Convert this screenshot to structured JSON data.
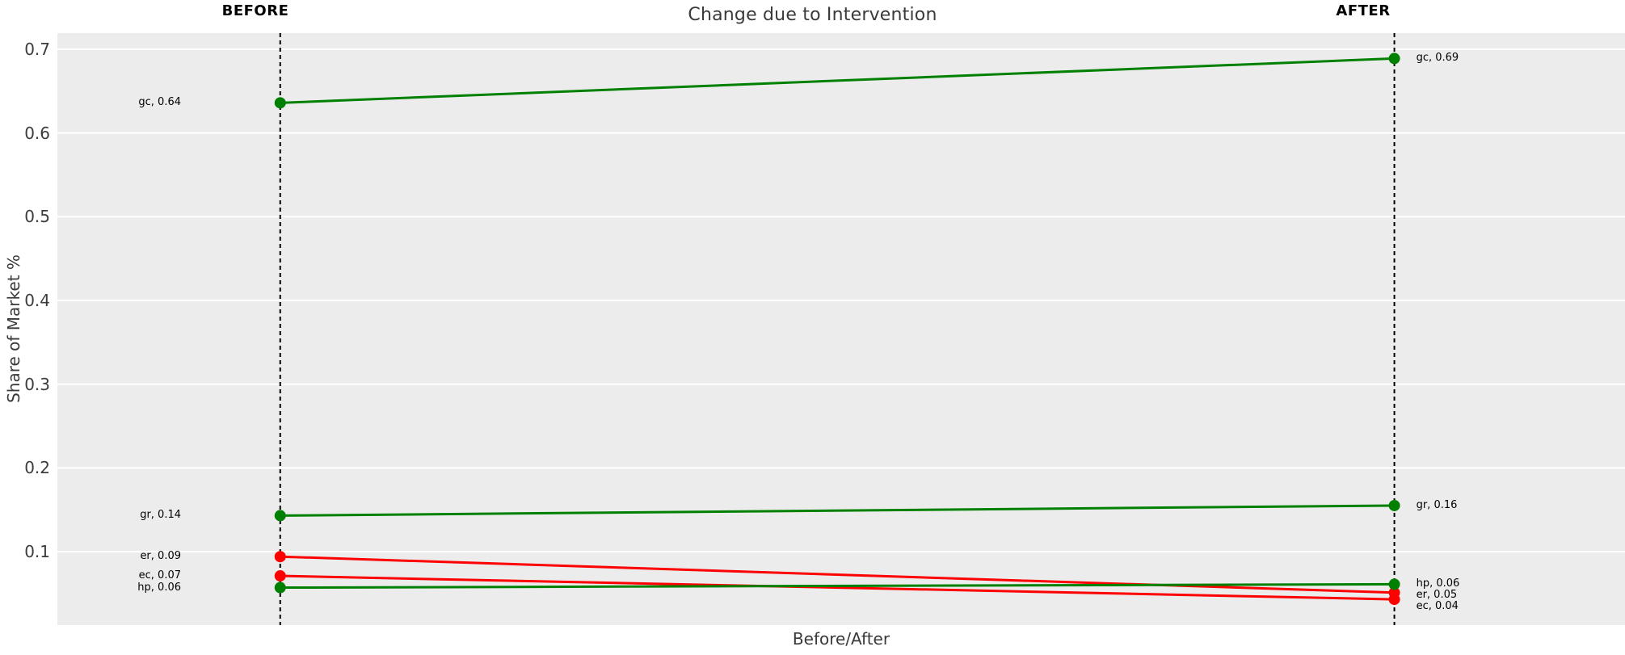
{
  "title": "Change due to Intervention",
  "axis": {
    "x_label": "Before/After",
    "y_label": "Share of Market %"
  },
  "column_headers": {
    "before": "BEFORE",
    "after": "AFTER"
  },
  "colors": {
    "increase_green": "#008000",
    "decrease_red": "#ff0000",
    "plot_background": "#ececec",
    "gridline": "#ffffff",
    "dashed_guide": "#000000",
    "text_dark": "#3d3d3d"
  },
  "chart_data": {
    "type": "line",
    "subtype": "slopegraph",
    "title": "Change due to Intervention",
    "xlabel": "Before/After",
    "ylabel": "Share of Market %",
    "categories": [
      "BEFORE",
      "AFTER"
    ],
    "category_x": [
      1,
      2
    ],
    "xlim": [
      0.8,
      2.207
    ],
    "ylim": [
      0.0122,
      0.7193
    ],
    "yticks": [
      0.1,
      0.2,
      0.3,
      0.4,
      0.5,
      0.6,
      0.7
    ],
    "ytick_labels": [
      "0.1",
      "0.2",
      "0.3",
      "0.4",
      "0.5",
      "0.6",
      "0.7"
    ],
    "grid": "horizontal white gridlines on grey background",
    "legend_position": "none",
    "guide_lines": "vertical black dashed line at each category",
    "series": [
      {
        "name": "gc",
        "values": [
          0.64,
          0.69
        ],
        "values_precise": [
          0.636,
          0.689
        ],
        "color": "#008000",
        "label_before": "gc, 0.64",
        "label_after": "gc, 0.69"
      },
      {
        "name": "gr",
        "values": [
          0.14,
          0.16
        ],
        "values_precise": [
          0.143,
          0.155
        ],
        "color": "#008000",
        "label_before": "gr, 0.14",
        "label_after": "gr, 0.16"
      },
      {
        "name": "er",
        "values": [
          0.09,
          0.05
        ],
        "values_precise": [
          0.094,
          0.051
        ],
        "color": "#ff0000",
        "label_before": "er, 0.09",
        "label_after": "er, 0.05"
      },
      {
        "name": "ec",
        "values": [
          0.07,
          0.04
        ],
        "values_precise": [
          0.071,
          0.043
        ],
        "color": "#ff0000",
        "label_before": "ec, 0.07",
        "label_after": "ec, 0.04"
      },
      {
        "name": "hp",
        "values": [
          0.06,
          0.06
        ],
        "values_precise": [
          0.057,
          0.061
        ],
        "color": "#008000",
        "label_before": "hp, 0.06",
        "label_after": "hp, 0.06"
      }
    ]
  }
}
